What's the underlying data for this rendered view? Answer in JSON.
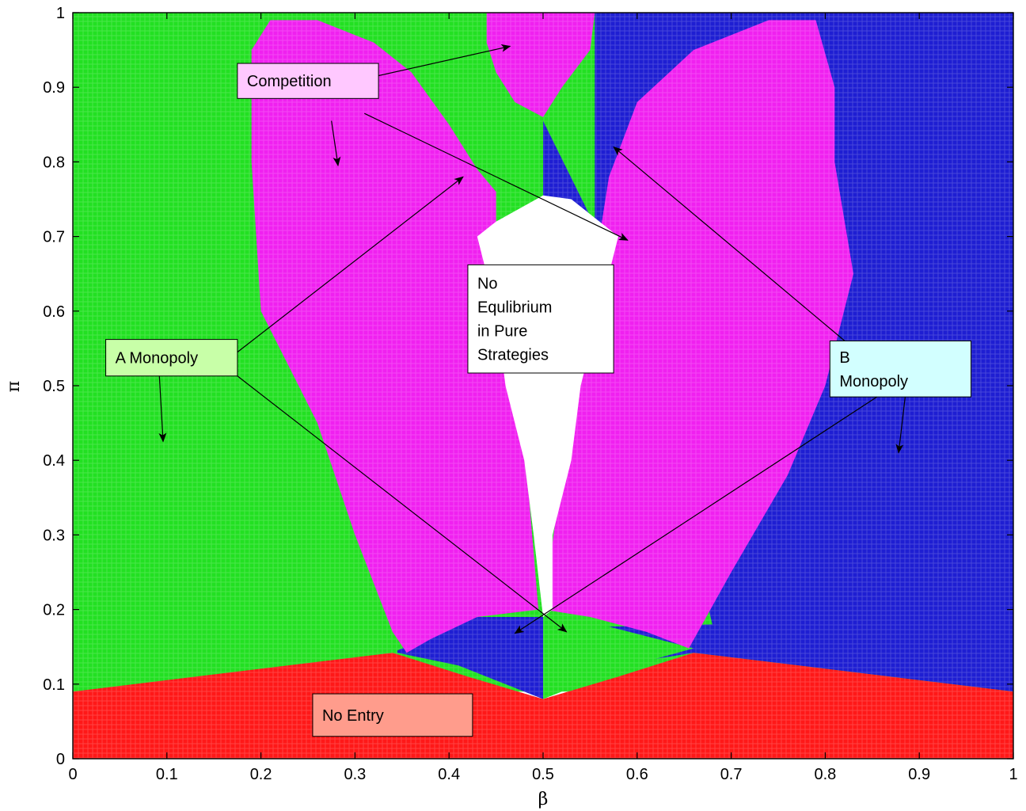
{
  "chart_data": {
    "type": "region-map",
    "xlabel": "β",
    "ylabel": "π",
    "xlim": [
      0,
      1
    ],
    "ylim": [
      0,
      1
    ],
    "xticks": [
      "0",
      "0.1",
      "0.2",
      "0.3",
      "0.4",
      "0.5",
      "0.6",
      "0.7",
      "0.8",
      "0.9",
      "1"
    ],
    "yticks": [
      "0",
      "0.1",
      "0.2",
      "0.3",
      "0.4",
      "0.5",
      "0.6",
      "0.7",
      "0.8",
      "0.9",
      "1"
    ],
    "grid": false,
    "regions": [
      {
        "key": "a_monopoly",
        "color": "#22e022",
        "points": [
          [
            0,
            0.09
          ],
          [
            0,
            1
          ],
          [
            1,
            1
          ],
          [
            1,
            0.09
          ]
        ]
      },
      {
        "key": "b_monopoly",
        "color": "#1e1ed2",
        "points": [
          [
            0.555,
            1
          ],
          [
            1,
            1
          ],
          [
            1,
            0.09
          ],
          [
            0.66,
            0.142
          ],
          [
            0.55,
            0.12
          ],
          [
            0.5,
            0.09
          ],
          [
            0.5,
            0.175
          ],
          [
            0.68,
            0.18
          ],
          [
            0.6,
            0.6
          ],
          [
            0.5,
            0.855
          ],
          [
            0.5,
            0.72
          ],
          [
            0.555,
            0.67
          ]
        ]
      },
      {
        "key": "b_monopoly_small",
        "color": "#1e1ed2",
        "points": [
          [
            0.345,
            0.142
          ],
          [
            0.41,
            0.125
          ],
          [
            0.48,
            0.09
          ],
          [
            0.5,
            0.08
          ],
          [
            0.5,
            0.19
          ],
          [
            0.43,
            0.19
          ],
          [
            0.345,
            0.145
          ]
        ]
      },
      {
        "key": "a_monopoly_small",
        "color": "#22e022",
        "points": [
          [
            0.5,
            0.08
          ],
          [
            0.5,
            0.19
          ],
          [
            0.53,
            0.19
          ],
          [
            0.66,
            0.148
          ],
          [
            0.58,
            0.12
          ],
          [
            0.52,
            0.09
          ]
        ]
      },
      {
        "key": "competition_left",
        "color": "#f020f0",
        "points": [
          [
            0.355,
            0.142
          ],
          [
            0.34,
            0.17
          ],
          [
            0.3,
            0.3
          ],
          [
            0.26,
            0.45
          ],
          [
            0.2,
            0.6
          ],
          [
            0.19,
            0.8
          ],
          [
            0.19,
            0.95
          ],
          [
            0.21,
            0.99
          ],
          [
            0.26,
            0.99
          ],
          [
            0.32,
            0.96
          ],
          [
            0.36,
            0.92
          ],
          [
            0.4,
            0.85
          ],
          [
            0.43,
            0.79
          ],
          [
            0.45,
            0.76
          ],
          [
            0.45,
            0.7
          ],
          [
            0.47,
            0.63
          ],
          [
            0.47,
            0.5
          ],
          [
            0.485,
            0.35
          ],
          [
            0.495,
            0.2
          ],
          [
            0.43,
            0.19
          ],
          [
            0.38,
            0.16
          ]
        ]
      },
      {
        "key": "competition_right",
        "color": "#f020f0",
        "points": [
          [
            0.655,
            0.148
          ],
          [
            0.7,
            0.25
          ],
          [
            0.76,
            0.38
          ],
          [
            0.8,
            0.5
          ],
          [
            0.83,
            0.65
          ],
          [
            0.81,
            0.8
          ],
          [
            0.81,
            0.9
          ],
          [
            0.79,
            0.99
          ],
          [
            0.74,
            0.99
          ],
          [
            0.66,
            0.95
          ],
          [
            0.6,
            0.88
          ],
          [
            0.57,
            0.78
          ],
          [
            0.56,
            0.7
          ],
          [
            0.54,
            0.6
          ],
          [
            0.53,
            0.5
          ],
          [
            0.52,
            0.38
          ],
          [
            0.5,
            0.2
          ],
          [
            0.55,
            0.19
          ],
          [
            0.61,
            0.17
          ]
        ]
      },
      {
        "key": "competition_top",
        "color": "#f020f0",
        "points": [
          [
            0.44,
            1
          ],
          [
            0.555,
            1
          ],
          [
            0.55,
            0.95
          ],
          [
            0.52,
            0.9
          ],
          [
            0.5,
            0.86
          ],
          [
            0.47,
            0.88
          ],
          [
            0.45,
            0.92
          ],
          [
            0.44,
            0.96
          ]
        ]
      },
      {
        "key": "no_equilibrium",
        "color": "#ffffff",
        "points": [
          [
            0.5,
            0.19
          ],
          [
            0.49,
            0.3
          ],
          [
            0.48,
            0.4
          ],
          [
            0.46,
            0.5
          ],
          [
            0.45,
            0.6
          ],
          [
            0.43,
            0.7
          ],
          [
            0.45,
            0.72
          ],
          [
            0.5,
            0.755
          ],
          [
            0.53,
            0.75
          ],
          [
            0.58,
            0.7
          ],
          [
            0.56,
            0.6
          ],
          [
            0.54,
            0.5
          ],
          [
            0.53,
            0.4
          ],
          [
            0.51,
            0.3
          ],
          [
            0.51,
            0.2
          ]
        ]
      },
      {
        "key": "no_entry",
        "color": "#ff1818",
        "points": [
          [
            0,
            0
          ],
          [
            1,
            0
          ],
          [
            1,
            0.09
          ],
          [
            0.66,
            0.142
          ],
          [
            0.58,
            0.11
          ],
          [
            0.5,
            0.08
          ],
          [
            0.42,
            0.11
          ],
          [
            0.34,
            0.142
          ],
          [
            0,
            0.09
          ]
        ]
      }
    ],
    "annotations": [
      {
        "key": "competition",
        "lines": [
          "Competition"
        ],
        "color": "#ffc8ff",
        "box": [
          0.175,
          0.932,
          0.325,
          0.885
        ],
        "arrows": [
          [
            [
              0.27,
              0.9
            ],
            [
              0.465,
              0.955
            ]
          ],
          [
            [
              0.275,
              0.855
            ],
            [
              0.282,
              0.795
            ]
          ],
          [
            [
              0.31,
              0.865
            ],
            [
              0.59,
              0.695
            ]
          ]
        ]
      },
      {
        "key": "a_monopoly",
        "lines": [
          "A Monopoly"
        ],
        "color": "#c8ffa8",
        "box": [
          0.035,
          0.562,
          0.175,
          0.513
        ],
        "arrows": [
          [
            [
              0.175,
              0.545
            ],
            [
              0.415,
              0.78
            ]
          ],
          [
            [
              0.092,
              0.513
            ],
            [
              0.096,
              0.425
            ]
          ],
          [
            [
              0.175,
              0.513
            ],
            [
              0.525,
              0.17
            ]
          ]
        ]
      },
      {
        "key": "no_equilibrium",
        "lines": [
          "No",
          "Equlibrium",
          "in Pure",
          "Strategies"
        ],
        "color": "#ffffff",
        "box": [
          0.42,
          0.662,
          0.575,
          0.517
        ],
        "arrows": []
      },
      {
        "key": "b_monopoly",
        "lines": [
          "B",
          "Monopoly"
        ],
        "color": "#d2ffff",
        "box": [
          0.805,
          0.56,
          0.955,
          0.485
        ],
        "arrows": [
          [
            [
              0.835,
              0.545
            ],
            [
              0.575,
              0.82
            ]
          ],
          [
            [
              0.855,
              0.485
            ],
            [
              0.47,
              0.168
            ]
          ],
          [
            [
              0.885,
              0.485
            ],
            [
              0.878,
              0.41
            ]
          ]
        ]
      },
      {
        "key": "no_entry",
        "lines": [
          "No Entry"
        ],
        "color": "#ff9c8c",
        "box": [
          0.255,
          0.087,
          0.425,
          0.03
        ],
        "arrows": []
      }
    ]
  }
}
